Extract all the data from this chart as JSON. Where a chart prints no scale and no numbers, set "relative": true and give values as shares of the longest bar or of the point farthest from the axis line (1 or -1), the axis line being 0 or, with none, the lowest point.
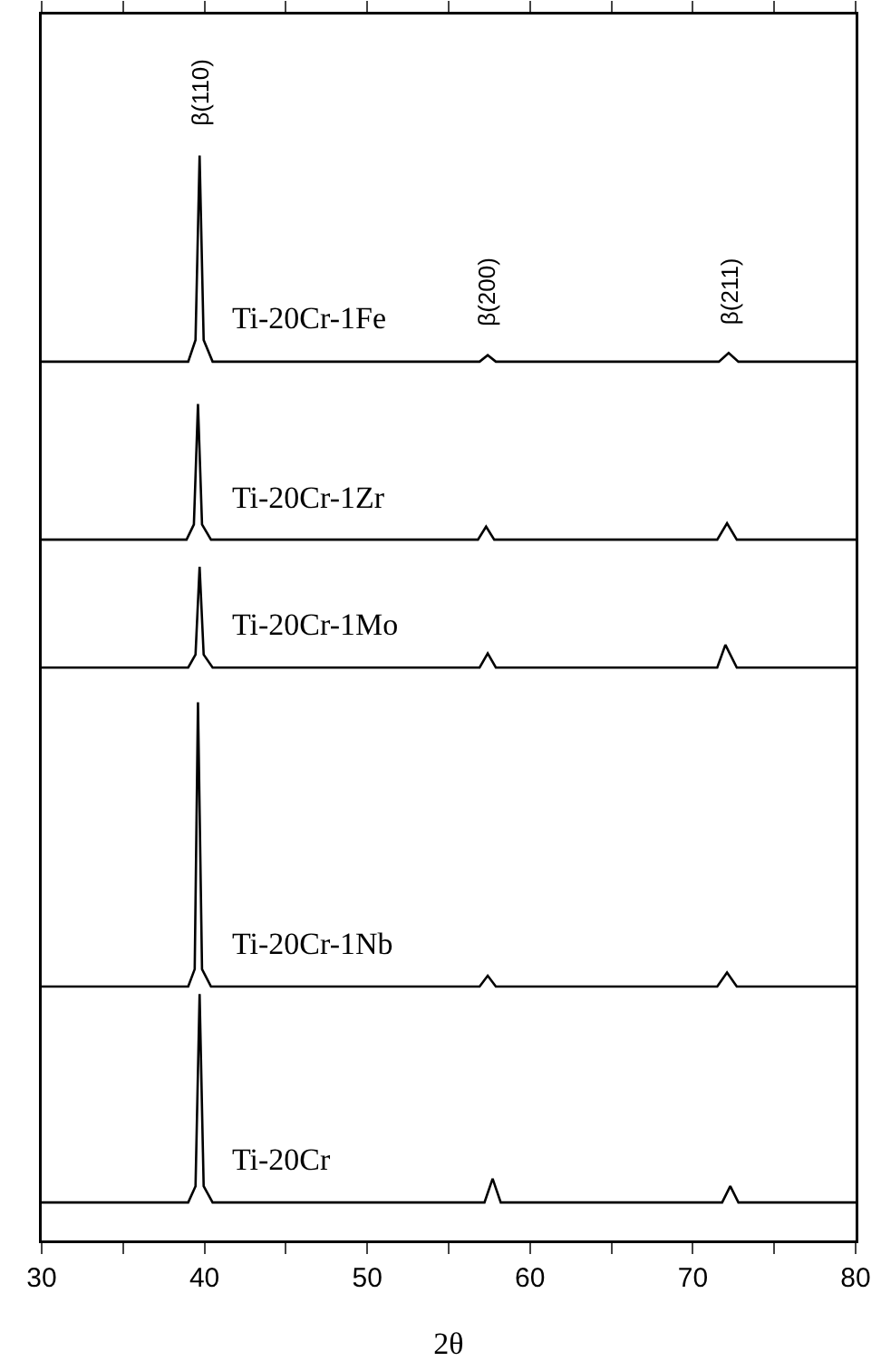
{
  "chart_data": {
    "type": "line",
    "relative": true,
    "xlabel": "2θ",
    "xlim": [
      30,
      80
    ],
    "xticks": [
      30,
      {
        "value": 35,
        "label": null
      },
      40,
      {
        "value": 45,
        "label": null
      },
      50,
      {
        "value": 55,
        "label": null
      },
      60,
      {
        "value": 65,
        "label": null
      },
      70,
      {
        "value": 75,
        "label": null
      },
      80
    ],
    "legend": false,
    "marker": "none",
    "line_style": "solid",
    "annotations": [
      {
        "text": "β(110)",
        "x": 39.7,
        "y": 1.0
      },
      {
        "text": "β(200)",
        "x": 57.4,
        "y": 0.816
      },
      {
        "text": "β(211)",
        "x": 72.2,
        "y": 0.818
      }
    ],
    "series": [
      {
        "name": "Ti-20Cr-1Fe",
        "color": "#000000",
        "x": [
          30,
          39.0,
          39.45,
          39.7,
          39.95,
          40.5,
          56.9,
          57.4,
          57.9,
          71.6,
          72.2,
          72.8,
          80
        ],
        "values": [
          0.81,
          0.81,
          0.83,
          1.0,
          0.83,
          0.81,
          0.81,
          0.816,
          0.81,
          0.81,
          0.818,
          0.81,
          0.81
        ]
      },
      {
        "name": "Ti-20Cr-1Zr",
        "color": "#000000",
        "x": [
          30,
          38.9,
          39.35,
          39.6,
          39.85,
          40.4,
          56.8,
          57.3,
          57.8,
          71.5,
          72.1,
          72.7,
          80
        ],
        "values": [
          0.646,
          0.646,
          0.66,
          0.771,
          0.66,
          0.646,
          0.646,
          0.658,
          0.646,
          0.646,
          0.661,
          0.646,
          0.646
        ]
      },
      {
        "name": "Ti-20Cr-1Mo",
        "color": "#000000",
        "x": [
          30,
          39.0,
          39.45,
          39.7,
          39.95,
          40.5,
          56.9,
          57.4,
          57.9,
          71.5,
          72.0,
          72.7,
          80
        ],
        "values": [
          0.528,
          0.528,
          0.54,
          0.621,
          0.54,
          0.528,
          0.528,
          0.541,
          0.528,
          0.528,
          0.549,
          0.528,
          0.528
        ]
      },
      {
        "name": "Ti-20Cr-1Nb",
        "color": "#000000",
        "x": [
          30,
          39.0,
          39.4,
          39.6,
          39.85,
          40.4,
          56.9,
          57.4,
          57.9,
          71.5,
          72.1,
          72.7,
          80
        ],
        "values": [
          0.234,
          0.234,
          0.25,
          0.496,
          0.25,
          0.234,
          0.234,
          0.244,
          0.234,
          0.234,
          0.247,
          0.234,
          0.234
        ]
      },
      {
        "name": "Ti-20Cr",
        "color": "#000000",
        "x": [
          30,
          39.0,
          39.45,
          39.7,
          39.95,
          40.5,
          57.2,
          57.7,
          58.2,
          71.8,
          72.3,
          72.8,
          80
        ],
        "values": [
          0.035,
          0.035,
          0.05,
          0.227,
          0.05,
          0.035,
          0.035,
          0.057,
          0.035,
          0.035,
          0.05,
          0.035,
          0.035
        ]
      }
    ]
  }
}
